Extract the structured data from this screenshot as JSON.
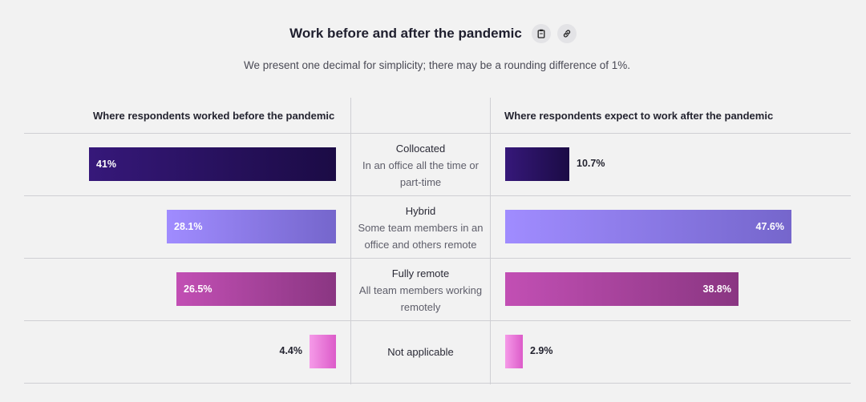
{
  "title": "Work before and after the pandemic",
  "subtitle": "We present one decimal for simplicity; there may be a rounding difference of 1%.",
  "icons": {
    "copy": "clipboard-icon",
    "link": "link-icon"
  },
  "left_header": "Where respondents worked before the pandemic",
  "right_header": "Where respondents expect to work after the pandemic",
  "chart_data": {
    "type": "bar",
    "categories": [
      "Collocated",
      "Hybrid",
      "Fully remote",
      "Not applicable"
    ],
    "descriptions": [
      "In an office all the time or part-time",
      "Some team members in an office and others remote",
      "All team members working remotely",
      ""
    ],
    "series": [
      {
        "name": "Where respondents worked before the pandemic",
        "values": [
          41,
          28.1,
          26.5,
          4.4
        ],
        "labels": [
          "41%",
          "28.1%",
          "26.5%",
          "4.4%"
        ]
      },
      {
        "name": "Where respondents expect to work after the pandemic",
        "values": [
          10.7,
          47.6,
          38.8,
          2.9
        ],
        "labels": [
          "10.7%",
          "47.6%",
          "38.8%",
          "2.9%"
        ]
      }
    ],
    "colors": [
      [
        "#36187a",
        "#1b0b45"
      ],
      [
        "#a08cff",
        "#7566cc"
      ],
      [
        "#c24fb4",
        "#8a3682"
      ],
      [
        "#f59ae8",
        "#dc5bc9"
      ]
    ],
    "ylim": [
      0,
      50
    ]
  }
}
